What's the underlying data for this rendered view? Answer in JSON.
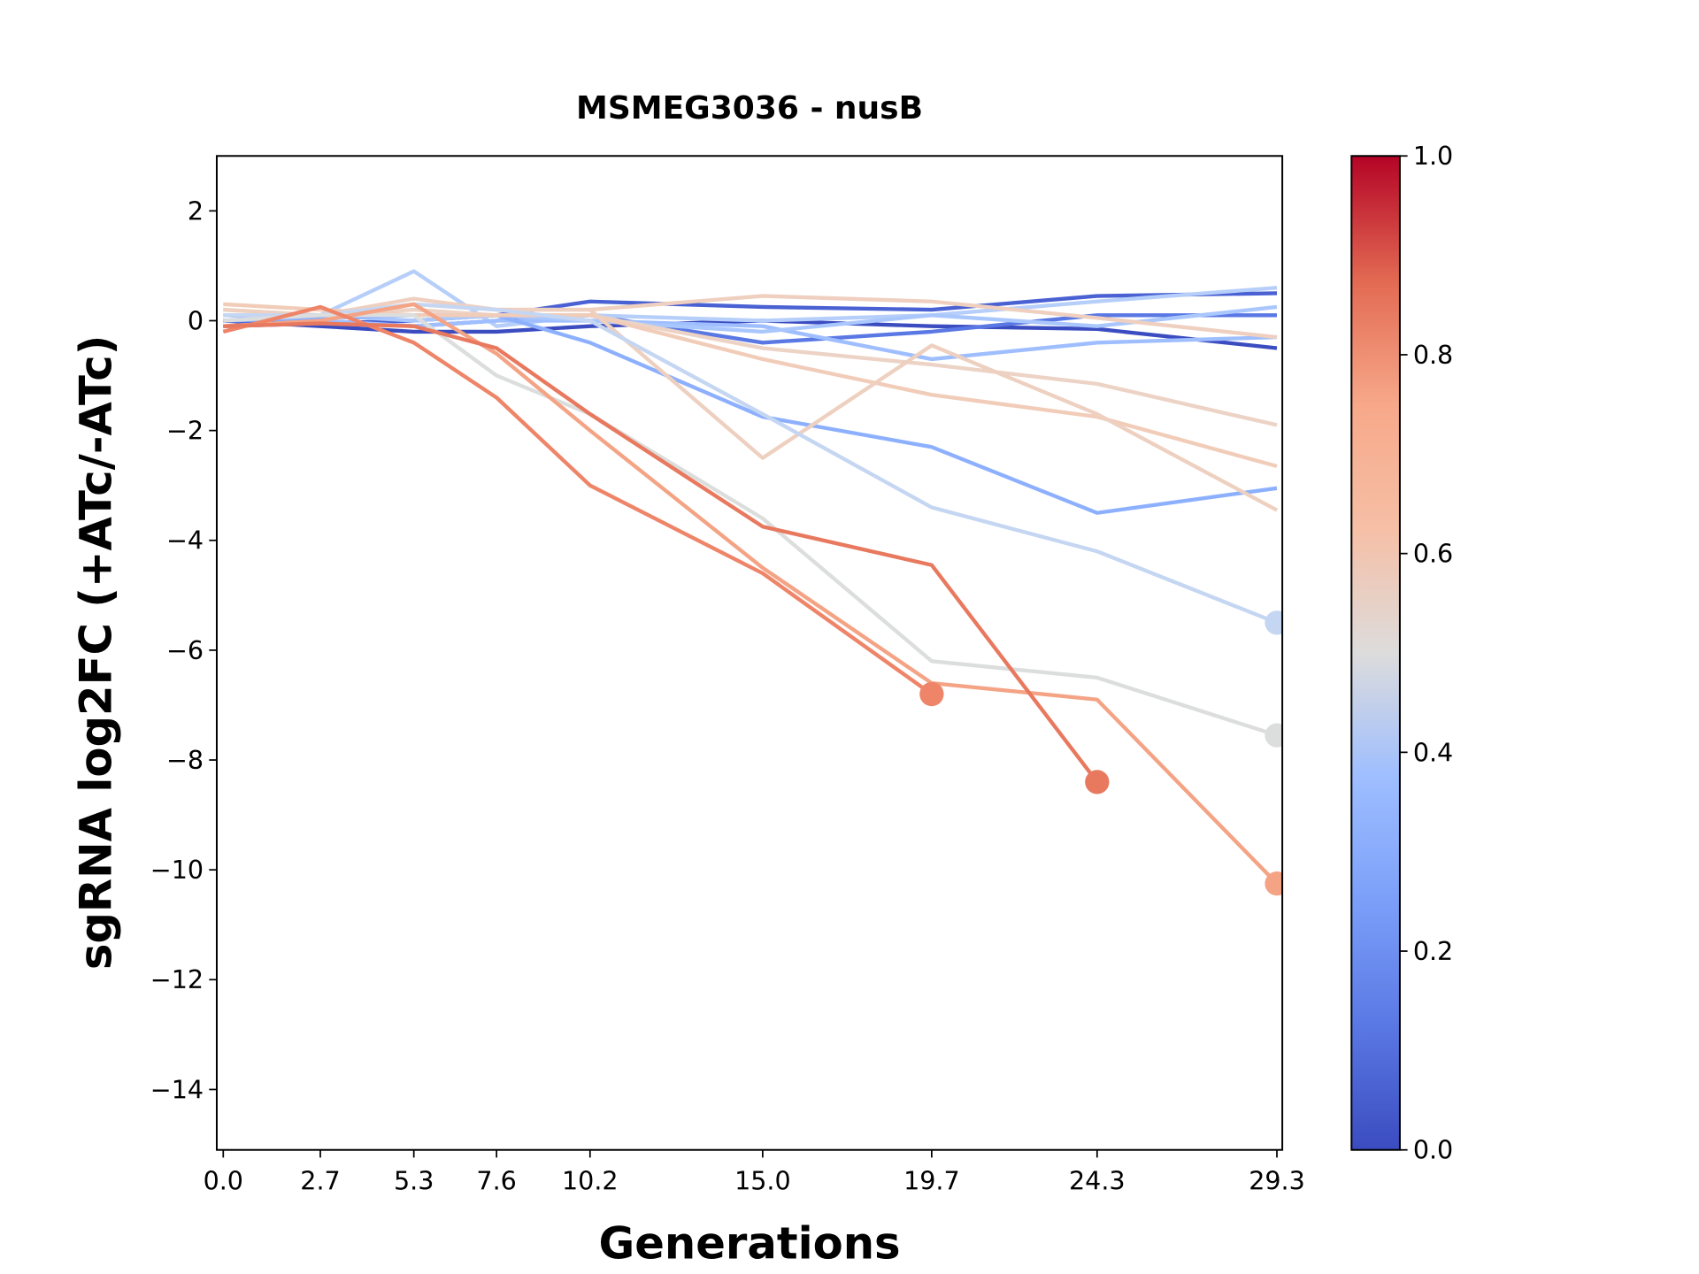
{
  "chart_data": {
    "type": "line",
    "title": "MSMEG3036 - nusB",
    "xlabel": "Generations",
    "ylabel": "sgRNA log2FC (+ATc/-ATc)",
    "x": [
      0,
      2.7,
      5.3,
      7.6,
      10.2,
      15.0,
      19.7,
      24.3,
      29.3
    ],
    "xlim": [
      -0.18,
      29.45
    ],
    "xticks": [
      {
        "value": 0,
        "label": "0.0"
      },
      2.7,
      5.3,
      7.6,
      10.2,
      {
        "value": 15,
        "label": "15.0"
      },
      19.7,
      24.3,
      29.3
    ],
    "ylim": [
      -15.1,
      3
    ],
    "yticks": [
      2,
      0,
      {
        "value": -2,
        "label": "−2"
      },
      {
        "value": -4,
        "label": "−4"
      },
      {
        "value": -6,
        "label": "−6"
      },
      {
        "value": -8,
        "label": "−8"
      },
      {
        "value": -10,
        "label": "−10"
      },
      {
        "value": -12,
        "label": "−12"
      },
      {
        "value": -14,
        "label": "−14"
      }
    ],
    "colorbar": {
      "lim": [
        0,
        1
      ],
      "ticks": [
        {
          "value": 0,
          "label": "0.0"
        },
        {
          "value": 0.2,
          "label": "0.2"
        },
        {
          "value": 0.4,
          "label": "0.4"
        },
        {
          "value": 0.6,
          "label": "0.6"
        },
        {
          "value": 0.8,
          "label": "0.8"
        },
        {
          "value": 1,
          "label": "1.0"
        }
      ]
    },
    "series": [
      {
        "color": "#3b4cc0",
        "values": [
          0.0,
          -0.1,
          -0.2,
          -0.2,
          -0.1,
          0.0,
          -0.1,
          -0.15,
          -0.5
        ]
      },
      {
        "color": "#4961d2",
        "values": [
          -0.1,
          -0.05,
          0.0,
          0.1,
          0.35,
          0.25,
          0.2,
          0.45,
          0.5
        ]
      },
      {
        "color": "#5a78e4",
        "values": [
          0.0,
          0.0,
          -0.1,
          0.0,
          0.1,
          -0.4,
          -0.2,
          0.1,
          0.1
        ]
      },
      {
        "color": "#b6cefa",
        "values": [
          0.0,
          0.1,
          0.9,
          -0.1,
          0.1,
          0.0,
          0.1,
          0.35,
          0.6
        ]
      },
      {
        "color": "#9ebeff",
        "values": [
          0.1,
          0.0,
          -0.1,
          0.0,
          0.0,
          -0.1,
          -0.7,
          -0.4,
          -0.3
        ]
      },
      {
        "color": "#aac7fd",
        "values": [
          0.0,
          0.1,
          0.0,
          0.1,
          0.0,
          -0.2,
          0.1,
          -0.1,
          0.25
        ]
      },
      {
        "color": "#8db0fe",
        "values": [
          0.0,
          0.05,
          0.1,
          0.1,
          -0.4,
          -1.75,
          -2.3,
          -3.5,
          -3.05
        ]
      },
      {
        "color": "#efcfbf",
        "values": [
          0.2,
          0.1,
          0.4,
          0.2,
          0.2,
          0.45,
          0.35,
          0.05,
          -0.3
        ]
      },
      {
        "color": "#ecd3c5",
        "values": [
          0.1,
          0.1,
          0.2,
          0.1,
          0.1,
          -0.5,
          -0.8,
          -1.15,
          -1.9
        ]
      },
      {
        "color": "#f1ccb8",
        "values": [
          0.3,
          0.2,
          0.1,
          0.1,
          0.1,
          -0.7,
          -1.35,
          -1.75,
          -2.65
        ]
      },
      {
        "color": "#eed0c0",
        "values": [
          0.2,
          0.1,
          0.3,
          0.2,
          0.2,
          -2.5,
          -0.45,
          -1.7,
          -3.45
        ]
      },
      {
        "color": "#c5d6f2",
        "values": [
          0.1,
          0.1,
          0.3,
          0.2,
          0.0,
          -1.7,
          -3.4,
          -4.2,
          -5.5
        ],
        "end_marker": true
      },
      {
        "color": "#dcdddd",
        "values": [
          0.0,
          0.1,
          0.1,
          -1.0,
          -1.7,
          -3.6,
          -6.2,
          -6.5,
          -7.55
        ],
        "end_marker": true
      },
      {
        "color": "#f4a385",
        "values": [
          -0.1,
          0.0,
          0.3,
          -0.6,
          -2.0,
          -4.5,
          -6.6,
          -6.9,
          -10.25
        ],
        "end_marker": true
      },
      {
        "color": "#ee8468",
        "values": [
          -0.2,
          0.25,
          -0.4,
          -1.4,
          -3.0,
          -4.6,
          -6.8,
          null,
          null
        ],
        "end_marker": true
      },
      {
        "color": "#e8795f",
        "values": [
          -0.1,
          -0.05,
          -0.1,
          -0.5,
          -1.7,
          -3.75,
          -4.45,
          -8.4,
          null
        ],
        "end_marker": true
      }
    ]
  }
}
